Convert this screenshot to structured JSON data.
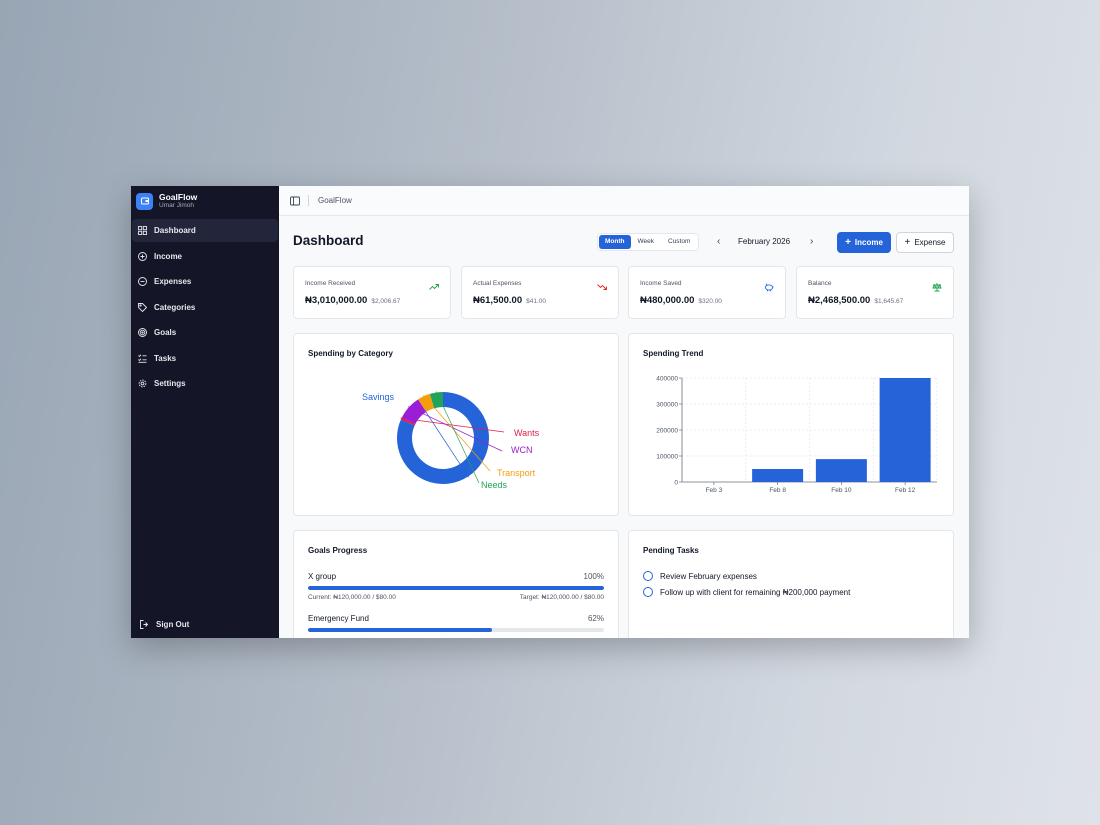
{
  "app": {
    "name": "GoalFlow",
    "user": "Umar Jimoh"
  },
  "sidebar": {
    "items": [
      {
        "label": "Dashboard",
        "icon": "grid-icon",
        "active": true
      },
      {
        "label": "Income",
        "icon": "plus-circle-icon"
      },
      {
        "label": "Expenses",
        "icon": "minus-circle-icon"
      },
      {
        "label": "Categories",
        "icon": "tag-icon"
      },
      {
        "label": "Goals",
        "icon": "target-icon"
      },
      {
        "label": "Tasks",
        "icon": "list-checks-icon"
      },
      {
        "label": "Settings",
        "icon": "gear-icon"
      }
    ],
    "signout": "Sign Out"
  },
  "topbar": {
    "breadcrumb": "GoalFlow"
  },
  "header": {
    "title": "Dashboard",
    "periods": [
      "Month",
      "Week",
      "Custom"
    ],
    "active_period": "Month",
    "prev": "‹",
    "month": "February 2026",
    "next": "›",
    "income_button": "Income",
    "expense_button": "Expense"
  },
  "stats": [
    {
      "label": "Income Received",
      "value": "₦3,010,000.00",
      "sub": "$2,006.67",
      "icon": "trend-up-icon",
      "color": "#16a34a"
    },
    {
      "label": "Actual Expenses",
      "value": "₦61,500.00",
      "sub": "$41.00",
      "icon": "trend-down-icon",
      "color": "#dc2626"
    },
    {
      "label": "Income Saved",
      "value": "₦480,000.00",
      "sub": "$320.00",
      "icon": "piggy-bank-icon",
      "color": "#2563eb"
    },
    {
      "label": "Balance",
      "value": "₦2,468,500.00",
      "sub": "$1,645.67",
      "icon": "scale-icon",
      "color": "#16a34a"
    }
  ],
  "spending_by_category": {
    "title": "Spending by Category",
    "chart_data": {
      "type": "pie",
      "categories": [
        "Savings",
        "Wants",
        "WCN",
        "Transport",
        "Needs"
      ],
      "values": [
        81.6,
        0.8,
        8.5,
        4.5,
        4.6
      ],
      "colors": [
        "#2563d9",
        "#e11d48",
        "#9b1dd6",
        "#f59e0b",
        "#22a35a"
      ]
    }
  },
  "spending_trend": {
    "title": "Spending Trend",
    "chart_data": {
      "type": "bar",
      "categories": [
        "Feb 3",
        "Feb 8",
        "Feb 10",
        "Feb 12"
      ],
      "values": [
        0,
        50000,
        88000,
        400000
      ],
      "yticks": [
        0,
        100000,
        200000,
        300000,
        400000
      ],
      "ylim": [
        0,
        400000
      ],
      "grid": true,
      "color": "#2563d9"
    }
  },
  "goals": {
    "title": "Goals Progress",
    "items": [
      {
        "name": "X group",
        "percent": "100%",
        "progress": 1.0,
        "current": "Current: ₦120,000.00 / $80.00",
        "target": "Target: ₦120,000.00 / $80.00"
      },
      {
        "name": "Emergency Fund",
        "percent": "62%",
        "progress": 0.62
      }
    ]
  },
  "tasks": {
    "title": "Pending Tasks",
    "items": [
      "Review February expenses",
      "Follow up with client for remaining ₦200,000 payment"
    ]
  }
}
